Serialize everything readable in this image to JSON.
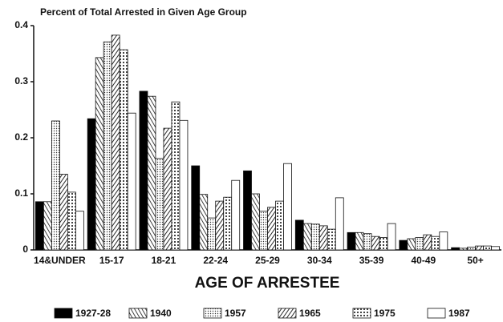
{
  "chart_data": {
    "type": "bar",
    "title": "Percent of Total Arrested in Given Age Group",
    "x_label": "AGE OF ARRESTEE",
    "categories": [
      "14&UNDER",
      "15-17",
      "18-21",
      "22-24",
      "25-29",
      "30-34",
      "35-39",
      "40-49",
      "50+"
    ],
    "series": [
      {
        "name": "1927-28",
        "color": "#000000",
        "values": [
          0.086,
          0.234,
          0.283,
          0.15,
          0.141,
          0.053,
          0.031,
          0.017,
          0.004
        ]
      },
      {
        "name": "1940",
        "color": "#ffffff",
        "values": [
          0.086,
          0.343,
          0.274,
          0.099,
          0.1,
          0.047,
          0.031,
          0.02,
          0.003
        ]
      },
      {
        "name": "1957",
        "color": "#ffffff",
        "values": [
          0.23,
          0.371,
          0.163,
          0.057,
          0.069,
          0.046,
          0.029,
          0.022,
          0.005
        ]
      },
      {
        "name": "1965",
        "color": "#ffffff",
        "values": [
          0.135,
          0.383,
          0.217,
          0.087,
          0.076,
          0.043,
          0.024,
          0.027,
          0.007
        ]
      },
      {
        "name": "1975",
        "color": "#ffffff",
        "values": [
          0.103,
          0.357,
          0.264,
          0.094,
          0.087,
          0.037,
          0.022,
          0.024,
          0.007
        ]
      },
      {
        "name": "1987",
        "color": "#ffffff",
        "values": [
          0.069,
          0.244,
          0.231,
          0.124,
          0.154,
          0.093,
          0.047,
          0.032,
          0.006
        ]
      }
    ],
    "ylim": [
      0,
      0.4
    ],
    "yticks": [
      0,
      0.1,
      0.2,
      0.3,
      0.4
    ]
  }
}
